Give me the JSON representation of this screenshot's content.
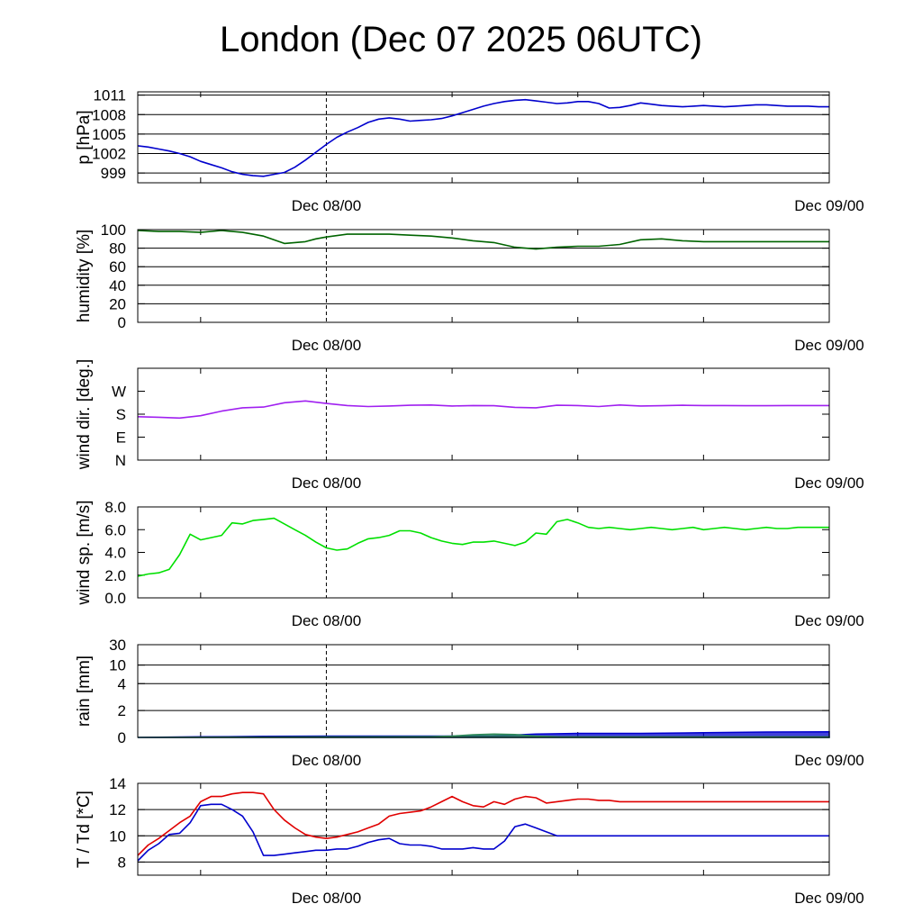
{
  "title": "London (Dec 07 2025 06UTC)",
  "chart_data": [
    {
      "type": "line",
      "ylabel": "p [hPa]",
      "x_range": [
        -18,
        48
      ],
      "x_ticks": [
        0,
        48
      ],
      "x_tick_labels": [
        "Dec 08/00",
        "Dec 09/00"
      ],
      "ylim": [
        997.5,
        1011.5
      ],
      "y_ticks": [
        999,
        1002,
        1005,
        1008,
        1011
      ],
      "y_tick_labels": [
        "999",
        "1002",
        "1005",
        "1008",
        "1011"
      ],
      "grid": true,
      "series": [
        {
          "color": "#0000cd",
          "x": [
            -18,
            -17,
            -16,
            -15,
            -14,
            -13,
            -12,
            -11,
            -10,
            -9,
            -8,
            -7,
            -6,
            -5,
            -4,
            -3,
            -2,
            -1,
            0,
            1,
            2,
            3,
            4,
            5,
            6,
            7,
            8,
            9,
            10,
            11,
            12,
            13,
            14,
            15,
            16,
            17,
            18,
            19,
            20,
            21,
            22,
            23,
            24,
            25,
            26,
            27,
            28,
            29,
            30,
            31,
            32,
            33,
            34,
            35,
            36,
            37,
            38,
            39,
            40,
            41,
            42,
            43,
            44,
            45,
            46,
            47,
            48
          ],
          "values": [
            1003.2,
            1003.0,
            1002.7,
            1002.4,
            1002.0,
            1001.5,
            1000.8,
            1000.3,
            999.8,
            999.2,
            998.8,
            998.6,
            998.5,
            998.8,
            999.1,
            999.9,
            1001.0,
            1002.2,
            1003.4,
            1004.5,
            1005.3,
            1006.0,
            1006.8,
            1007.3,
            1007.5,
            1007.3,
            1007.0,
            1007.1,
            1007.2,
            1007.4,
            1007.8,
            1008.3,
            1008.8,
            1009.3,
            1009.7,
            1010.0,
            1010.2,
            1010.3,
            1010.1,
            1009.9,
            1009.7,
            1009.8,
            1010.0,
            1010.0,
            1009.7,
            1009.0,
            1009.1,
            1009.4,
            1009.8,
            1009.6,
            1009.4,
            1009.3,
            1009.2,
            1009.3,
            1009.4,
            1009.3,
            1009.2,
            1009.3,
            1009.4,
            1009.5,
            1009.5,
            1009.4,
            1009.3,
            1009.3,
            1009.3,
            1009.2,
            1009.2
          ]
        }
      ]
    },
    {
      "type": "line",
      "ylabel": "humidity [%]",
      "x_range": [
        -18,
        48
      ],
      "x_ticks": [
        0,
        48
      ],
      "x_tick_labels": [
        "Dec 08/00",
        "Dec 09/00"
      ],
      "ylim": [
        0,
        100
      ],
      "y_ticks": [
        0,
        20,
        40,
        60,
        80,
        100
      ],
      "y_tick_labels": [
        "0",
        "20",
        "40",
        "60",
        "80",
        "100"
      ],
      "grid": true,
      "series": [
        {
          "color": "#006400",
          "x": [
            -18,
            -16,
            -14,
            -12,
            -10,
            -8,
            -6,
            -4,
            -2,
            -1,
            0,
            2,
            4,
            6,
            8,
            10,
            12,
            14,
            16,
            18,
            20,
            22,
            24,
            26,
            28,
            30,
            32,
            34,
            36,
            38,
            40,
            42,
            44,
            46,
            48
          ],
          "values": [
            99,
            98,
            98,
            97,
            99,
            97,
            93,
            85,
            87,
            90,
            92,
            95,
            95,
            95,
            94,
            93,
            91,
            88,
            86,
            81,
            79,
            81,
            82,
            82,
            84,
            89,
            90,
            88,
            87,
            87,
            87,
            87,
            87,
            87,
            87
          ]
        }
      ]
    },
    {
      "type": "line",
      "ylabel": "wind dir. [deg.]",
      "x_range": [
        -18,
        48
      ],
      "x_ticks": [
        0,
        48
      ],
      "x_tick_labels": [
        "Dec 08/00",
        "Dec 09/00"
      ],
      "ylim": [
        0,
        360
      ],
      "y_ticks": [
        0,
        90,
        180,
        270
      ],
      "y_tick_labels": [
        "N",
        "E",
        "S",
        "W"
      ],
      "grid": false,
      "series": [
        {
          "color": "#a020f0",
          "x": [
            -18,
            -16,
            -14,
            -12,
            -10,
            -8,
            -6,
            -4,
            -2,
            0,
            2,
            4,
            6,
            8,
            10,
            12,
            14,
            16,
            18,
            20,
            22,
            24,
            26,
            28,
            30,
            32,
            34,
            36,
            38,
            40,
            42,
            44,
            46,
            48
          ],
          "values": [
            170,
            168,
            165,
            174,
            192,
            205,
            208,
            225,
            232,
            222,
            214,
            210,
            212,
            215,
            216,
            212,
            214,
            213,
            207,
            205,
            215,
            214,
            210,
            216,
            212,
            213,
            215,
            214,
            214,
            213,
            213,
            214,
            214,
            214
          ]
        }
      ]
    },
    {
      "type": "line",
      "ylabel": "wind sp. [m/s]",
      "x_range": [
        -18,
        48
      ],
      "x_ticks": [
        0,
        48
      ],
      "x_tick_labels": [
        "Dec 08/00",
        "Dec 09/00"
      ],
      "ylim": [
        0,
        8
      ],
      "y_ticks": [
        0,
        2,
        4,
        6,
        8
      ],
      "y_tick_labels": [
        "0.0",
        "2.0",
        "4.0",
        "6.0",
        "8.0"
      ],
      "grid": false,
      "series": [
        {
          "color": "#00e000",
          "x": [
            -18,
            -17,
            -16,
            -15,
            -14,
            -13,
            -12,
            -11,
            -10,
            -9,
            -8,
            -7,
            -6,
            -5,
            -4,
            -3,
            -2,
            -1,
            0,
            1,
            2,
            3,
            4,
            5,
            6,
            7,
            8,
            9,
            10,
            11,
            12,
            13,
            14,
            15,
            16,
            17,
            18,
            19,
            20,
            21,
            22,
            23,
            24,
            25,
            26,
            27,
            28,
            29,
            30,
            31,
            32,
            33,
            34,
            35,
            36,
            37,
            38,
            39,
            40,
            41,
            42,
            43,
            44,
            45,
            46,
            47,
            48
          ],
          "values": [
            1.9,
            2.1,
            2.2,
            2.5,
            3.8,
            5.6,
            5.1,
            5.3,
            5.5,
            6.6,
            6.5,
            6.8,
            6.9,
            7.0,
            6.5,
            6.0,
            5.5,
            4.9,
            4.4,
            4.2,
            4.3,
            4.8,
            5.2,
            5.3,
            5.5,
            5.9,
            5.9,
            5.7,
            5.3,
            5.0,
            4.8,
            4.7,
            4.9,
            4.9,
            5.0,
            4.8,
            4.6,
            4.9,
            5.7,
            5.6,
            6.7,
            6.9,
            6.6,
            6.2,
            6.1,
            6.2,
            6.1,
            6.0,
            6.1,
            6.2,
            6.1,
            6.0,
            6.1,
            6.2,
            6.0,
            6.1,
            6.2,
            6.1,
            6.0,
            6.1,
            6.2,
            6.1,
            6.1,
            6.2,
            6.2,
            6.2,
            6.2
          ]
        }
      ]
    },
    {
      "type": "area",
      "ylabel": "rain [mm]",
      "x_range": [
        -18,
        48
      ],
      "x_ticks": [
        0,
        48
      ],
      "x_tick_labels": [
        "Dec 08/00",
        "Dec 09/00"
      ],
      "ylim": [
        0,
        30
      ],
      "y_ticks": [
        0,
        2,
        4,
        10,
        30
      ],
      "y_tick_labels": [
        "0",
        "2",
        "4",
        "10",
        "30"
      ],
      "grid": true,
      "series": [
        {
          "color": "#0000cd",
          "x": [
            -18,
            -12,
            -6,
            0,
            6,
            12,
            16,
            20,
            24,
            30,
            36,
            42,
            48
          ],
          "values": [
            0,
            0.05,
            0.08,
            0.1,
            0.1,
            0.1,
            0.12,
            0.25,
            0.3,
            0.3,
            0.35,
            0.4,
            0.42
          ]
        },
        {
          "color": "#2e8b57",
          "x": [
            -18,
            -12,
            -6,
            0,
            6,
            10,
            12,
            14,
            16,
            18,
            20,
            22,
            24,
            30,
            36,
            42,
            48
          ],
          "values": [
            0,
            0.02,
            0.03,
            0.04,
            0.05,
            0.06,
            0.1,
            0.2,
            0.25,
            0.22,
            0.1,
            0.05,
            0.04,
            0.04,
            0.04,
            0.04,
            0.04
          ]
        }
      ]
    },
    {
      "type": "line",
      "ylabel": "T / Td [*C]",
      "x_range": [
        -18,
        48
      ],
      "x_ticks": [
        0,
        48
      ],
      "x_tick_labels": [
        "Dec 08/00",
        "Dec 09/00"
      ],
      "ylim": [
        7,
        14
      ],
      "y_ticks": [
        8,
        10,
        12,
        14
      ],
      "y_tick_labels": [
        "8",
        "10",
        "12",
        "14"
      ],
      "grid": true,
      "series": [
        {
          "color": "#e00000",
          "x": [
            -18,
            -17,
            -16,
            -15,
            -14,
            -13,
            -12,
            -11,
            -10,
            -9,
            -8,
            -7,
            -6,
            -5,
            -4,
            -3,
            -2,
            -1,
            0,
            1,
            2,
            3,
            4,
            5,
            6,
            7,
            8,
            9,
            10,
            11,
            12,
            13,
            14,
            15,
            16,
            17,
            18,
            19,
            20,
            21,
            22,
            23,
            24,
            25,
            26,
            27,
            28,
            29,
            30,
            31,
            32,
            33,
            34,
            35,
            36,
            37,
            38,
            39,
            40,
            41,
            42,
            43,
            44,
            45,
            46,
            47,
            48
          ],
          "values": [
            8.5,
            9.3,
            9.8,
            10.4,
            11.0,
            11.5,
            12.6,
            13.0,
            13.0,
            13.2,
            13.3,
            13.3,
            13.2,
            12.0,
            11.2,
            10.6,
            10.1,
            9.9,
            9.8,
            9.9,
            10.1,
            10.3,
            10.6,
            10.9,
            11.5,
            11.7,
            11.8,
            11.9,
            12.2,
            12.6,
            13.0,
            12.6,
            12.3,
            12.2,
            12.6,
            12.4,
            12.8,
            13.0,
            12.9,
            12.5,
            12.6,
            12.7,
            12.8,
            12.8,
            12.7,
            12.7,
            12.6,
            12.6,
            12.6,
            12.6,
            12.6,
            12.6,
            12.6,
            12.6,
            12.6,
            12.6,
            12.6,
            12.6,
            12.6,
            12.6,
            12.6,
            12.6,
            12.6,
            12.6,
            12.6,
            12.6,
            12.6
          ]
        },
        {
          "color": "#0000cd",
          "x": [
            -18,
            -17,
            -16,
            -15,
            -14,
            -13,
            -12,
            -11,
            -10,
            -9,
            -8,
            -7,
            -6,
            -5,
            -4,
            -3,
            -2,
            -1,
            0,
            1,
            2,
            3,
            4,
            5,
            6,
            7,
            8,
            9,
            10,
            11,
            12,
            13,
            14,
            15,
            16,
            17,
            18,
            19,
            20,
            21,
            22,
            23,
            24,
            25,
            26,
            27,
            28,
            29,
            30,
            31,
            32,
            33,
            34,
            35,
            36,
            37,
            38,
            39,
            40,
            41,
            42,
            43,
            44,
            45,
            46,
            47,
            48
          ],
          "values": [
            8.1,
            8.9,
            9.4,
            10.1,
            10.2,
            11.0,
            12.3,
            12.4,
            12.4,
            12.0,
            11.5,
            10.3,
            8.5,
            8.5,
            8.6,
            8.7,
            8.8,
            8.9,
            8.9,
            9.0,
            9.0,
            9.2,
            9.5,
            9.7,
            9.8,
            9.4,
            9.3,
            9.3,
            9.2,
            9.0,
            9.0,
            9.0,
            9.1,
            9.0,
            9.0,
            9.6,
            10.7,
            10.9,
            10.6,
            10.3,
            10.0,
            10.0,
            10.0,
            10.0,
            10.0,
            10.0,
            10.0,
            10.0,
            10.0,
            10.0,
            10.0,
            10.0,
            10.0,
            10.0,
            10.0,
            10.0,
            10.0,
            10.0,
            10.0,
            10.0,
            10.0,
            10.0,
            10.0,
            10.0,
            10.0,
            10.0,
            10.0
          ]
        }
      ]
    }
  ]
}
